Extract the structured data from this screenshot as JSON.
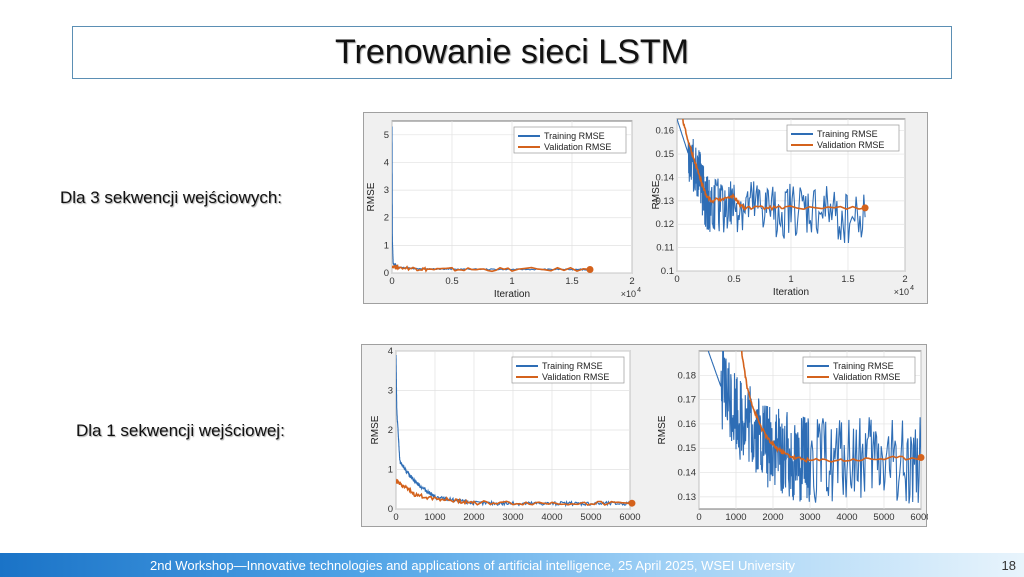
{
  "slide": {
    "title": "Trenowanie sieci LSTM",
    "row1_label": "Dla 3 sekwencji wejściowych:",
    "row2_label": "Dla 1 sekwencji wejściowej:",
    "footer_text": "2nd Workshop—Innovative technologies and applications of artificial intelligence,    25 April 2025, WSEI University",
    "page_number": "18"
  },
  "colors": {
    "training": "#2e6db5",
    "validation": "#d4621c"
  },
  "chart_data": [
    {
      "type": "line",
      "ylabel": "RMSE",
      "xlabel": "Iteration",
      "x_exponent": "×10",
      "x_exponent_power": "4",
      "xlim": [
        0,
        2
      ],
      "ylim": [
        0,
        5.5
      ],
      "xticks": [
        0,
        0.5,
        1,
        1.5,
        2
      ],
      "xtick_labels": [
        "0",
        "0.5",
        "1",
        "1.5",
        "2"
      ],
      "yticks": [
        0,
        1,
        2,
        3,
        4,
        5
      ],
      "ytick_labels": [
        "0",
        "1",
        "2",
        "3",
        "4",
        "5"
      ],
      "legend": [
        "Training RMSE",
        "Validation RMSE"
      ],
      "legend_position": "top-right",
      "series": [
        {
          "name": "Training RMSE",
          "x": [
            0,
            0.003,
            0.01,
            0.05,
            0.2,
            0.5,
            1.0,
            1.5,
            1.65
          ],
          "y": [
            5.3,
            1.2,
            0.35,
            0.2,
            0.16,
            0.14,
            0.13,
            0.13,
            0.125
          ]
        },
        {
          "name": "Validation RMSE",
          "x": [
            0,
            0.05,
            0.2,
            0.3,
            0.6,
            1.0,
            1.65
          ],
          "y": [
            0.25,
            0.2,
            0.16,
            0.13,
            0.128,
            0.127,
            0.127
          ]
        }
      ]
    },
    {
      "type": "line",
      "ylabel": "RMSE",
      "xlabel": "Iteration",
      "x_exponent": "×10",
      "x_exponent_power": "4",
      "xlim": [
        0,
        2
      ],
      "ylim": [
        0.1,
        0.165
      ],
      "xticks": [
        0,
        0.5,
        1,
        1.5,
        2
      ],
      "xtick_labels": [
        "0",
        "0.5",
        "1",
        "1.5",
        "2"
      ],
      "yticks": [
        0.1,
        0.11,
        0.12,
        0.13,
        0.14,
        0.15,
        0.16
      ],
      "ytick_labels": [
        "0.1",
        "0.11",
        "0.12",
        "0.13",
        "0.14",
        "0.15",
        "0.16"
      ],
      "legend": [
        "Training RMSE",
        "Validation RMSE"
      ],
      "legend_position": "top-right",
      "series": [
        {
          "name": "Training RMSE",
          "x": [
            0,
            0.1,
            0.2,
            0.25,
            0.3,
            0.5,
            0.8,
            1.2,
            1.65
          ],
          "y": [
            0.165,
            0.15,
            0.14,
            0.13,
            0.128,
            0.127,
            0.126,
            0.125,
            0.123
          ]
        },
        {
          "name": "Validation RMSE",
          "x": [
            0.05,
            0.1,
            0.15,
            0.2,
            0.25,
            0.3,
            0.4,
            0.5,
            0.55,
            0.6,
            0.8,
            1.0,
            1.65
          ],
          "y": [
            0.165,
            0.155,
            0.148,
            0.14,
            0.133,
            0.13,
            0.131,
            0.132,
            0.128,
            0.127,
            0.127,
            0.127,
            0.127
          ]
        }
      ]
    },
    {
      "type": "line",
      "ylabel": "RMSE",
      "xlim": [
        0,
        6000
      ],
      "ylim": [
        0,
        4
      ],
      "xticks": [
        0,
        1000,
        2000,
        3000,
        4000,
        5000,
        6000
      ],
      "xtick_labels": [
        "0",
        "1000",
        "2000",
        "3000",
        "4000",
        "5000",
        "6000"
      ],
      "yticks": [
        0,
        1,
        2,
        3,
        4
      ],
      "ytick_labels": [
        "0",
        "1",
        "2",
        "3",
        "4"
      ],
      "legend": [
        "Training RMSE",
        "Validation RMSE"
      ],
      "legend_position": "top-right",
      "series": [
        {
          "name": "Training RMSE",
          "x": [
            0,
            20,
            100,
            300,
            600,
            1000,
            1500,
            2000,
            3000,
            4000,
            5000,
            6050
          ],
          "y": [
            3.9,
            2.5,
            1.2,
            0.9,
            0.6,
            0.3,
            0.22,
            0.15,
            0.14,
            0.14,
            0.14,
            0.14
          ]
        },
        {
          "name": "Validation RMSE",
          "x": [
            0,
            100,
            300,
            500,
            800,
            1200,
            1600,
            2000,
            3000,
            4000,
            5000,
            6050
          ],
          "y": [
            0.7,
            0.65,
            0.5,
            0.35,
            0.3,
            0.25,
            0.2,
            0.16,
            0.148,
            0.147,
            0.147,
            0.147
          ]
        }
      ]
    },
    {
      "type": "line",
      "ylabel": "RMSE",
      "xlim": [
        0,
        6000
      ],
      "ylim": [
        0.125,
        0.19
      ],
      "xticks": [
        0,
        1000,
        2000,
        3000,
        4000,
        5000,
        6000
      ],
      "xtick_labels": [
        "0",
        "1000",
        "2000",
        "3000",
        "4000",
        "5000",
        "6000"
      ],
      "yticks": [
        0.13,
        0.14,
        0.15,
        0.16,
        0.17,
        0.18
      ],
      "ytick_labels": [
        "0.13",
        "0.14",
        "0.15",
        "0.16",
        "0.17",
        "0.18"
      ],
      "legend": [
        "Training RMSE",
        "Validation RMSE"
      ],
      "legend_position": "top-right",
      "series": [
        {
          "name": "Training RMSE",
          "x": [
            250,
            600,
            1000,
            1400,
            1800,
            2200,
            2600,
            3000,
            4000,
            5000,
            6000
          ],
          "y": [
            0.19,
            0.175,
            0.165,
            0.158,
            0.152,
            0.148,
            0.146,
            0.145,
            0.145,
            0.145,
            0.145
          ]
        },
        {
          "name": "Validation RMSE",
          "x": [
            1150,
            1300,
            1500,
            1700,
            1900,
            2100,
            2300,
            2600,
            3000,
            4000,
            5000,
            6000
          ],
          "y": [
            0.19,
            0.175,
            0.165,
            0.158,
            0.153,
            0.15,
            0.148,
            0.146,
            0.145,
            0.1452,
            0.1458,
            0.1462
          ]
        }
      ]
    }
  ]
}
